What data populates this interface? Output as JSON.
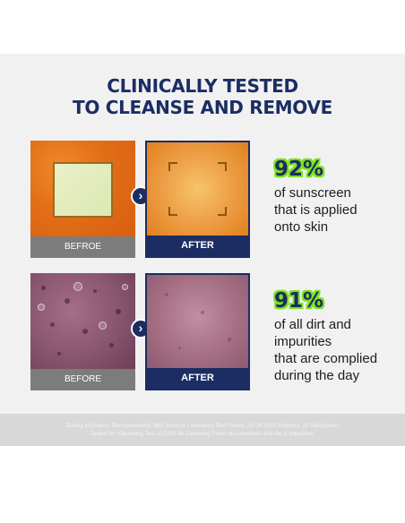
{
  "title": {
    "line1": "CLINICALLY TESTED",
    "line2": "TO CLEANSE AND REMOVE"
  },
  "row1": {
    "before_label": "BEFROE",
    "after_label": "AFTER",
    "percent": "92%",
    "desc": [
      "of sunscreen",
      "that is applied",
      "onto skin"
    ]
  },
  "row2": {
    "before_label": "BEFORE",
    "after_label": "AFTER",
    "percent": "91%",
    "desc": [
      "of all dirt and",
      "impurities",
      "that are complied",
      "during the day"
    ]
  },
  "footer": {
    "line1": "Testing institution: Dermaceumetic Skin Science Laboratory Test Period: Jul 04 2022 Subjects: 20 Participants",
    "line2": "Tested for: Cleansing Test of DIVE-IN Cleansing Foam on sunscreen and dirt & impurities."
  },
  "colors": {
    "navy": "#1b2d63",
    "green": "#7ee21f",
    "gray_label": "#7c7c7c"
  },
  "icons": {
    "arrow": "chevron-right-icon"
  }
}
